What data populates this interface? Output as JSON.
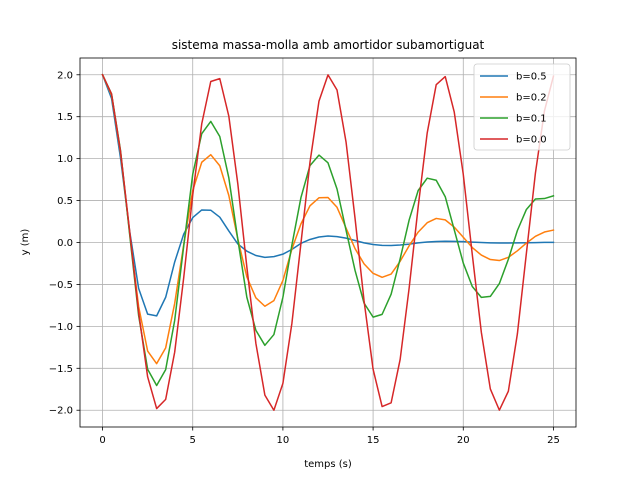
{
  "chart_data": {
    "type": "line",
    "title": "sistema massa-molla amb amortidor subamortiguat",
    "xlabel": "temps (s)",
    "ylabel": "y (m)",
    "xlim": [
      -1.25,
      26.25
    ],
    "ylim": [
      -2.2,
      2.2
    ],
    "xticks": [
      0,
      5,
      10,
      15,
      20,
      25
    ],
    "yticks": [
      -2.0,
      -1.5,
      -1.0,
      -0.5,
      0.0,
      0.5,
      1.0,
      1.5,
      2.0
    ],
    "xtick_labels": [
      "0",
      "5",
      "10",
      "15",
      "20",
      "25"
    ],
    "ytick_labels": [
      "−2.0",
      "−1.5",
      "−1.0",
      "−0.5",
      "0.0",
      "0.5",
      "1.0",
      "1.5",
      "2.0"
    ],
    "grid": true,
    "legend_position": "top-right",
    "x": [
      0,
      0.5,
      1,
      1.5,
      2,
      2.5,
      3,
      3.5,
      4,
      4.5,
      5,
      5.5,
      6,
      6.5,
      7,
      7.5,
      8,
      8.5,
      9,
      9.5,
      10,
      10.5,
      11,
      11.5,
      12,
      12.5,
      13,
      13.5,
      14,
      14.5,
      15,
      15.5,
      16,
      16.5,
      17,
      17.5,
      18,
      18.5,
      19,
      19.5,
      20,
      20.5,
      21,
      21.5,
      22,
      22.5,
      23,
      23.5,
      24,
      24.5,
      25
    ],
    "series": [
      {
        "name": "b=0.5",
        "color": "#1f77b4",
        "values": [
          2.0,
          1.717,
          1.001,
          0.141,
          -0.547,
          -0.854,
          -0.875,
          -0.653,
          -0.232,
          0.1,
          0.297,
          0.388,
          0.385,
          0.302,
          0.138,
          -0.017,
          -0.103,
          -0.155,
          -0.177,
          -0.168,
          -0.139,
          -0.082,
          -0.01,
          0.036,
          0.066,
          0.078,
          0.07,
          0.052,
          0.024,
          -0.004,
          -0.024,
          -0.034,
          -0.035,
          -0.03,
          -0.019,
          -0.005,
          0.006,
          0.012,
          0.015,
          0.014,
          0.011,
          0.005,
          0.0,
          -0.004,
          -0.006,
          -0.006,
          -0.005,
          -0.003,
          -0.001,
          0.001,
          0.002
        ]
      },
      {
        "name": "b=0.2",
        "color": "#ff7f0e",
        "values": [
          2.0,
          1.757,
          1.067,
          0.119,
          -0.763,
          -1.294,
          -1.445,
          -1.256,
          -0.726,
          -0.027,
          0.62,
          0.957,
          1.047,
          0.915,
          0.562,
          0.042,
          -0.41,
          -0.66,
          -0.76,
          -0.693,
          -0.452,
          -0.078,
          0.222,
          0.437,
          0.533,
          0.537,
          0.42,
          0.173,
          -0.073,
          -0.255,
          -0.368,
          -0.415,
          -0.376,
          -0.224,
          -0.038,
          0.124,
          0.236,
          0.287,
          0.27,
          0.183,
          0.062,
          -0.06,
          -0.15,
          -0.203,
          -0.215,
          -0.177,
          -0.099,
          -0.007,
          0.074,
          0.125,
          0.148
        ]
      },
      {
        "name": "b=0.1",
        "color": "#2ca02c",
        "values": [
          2.0,
          1.772,
          1.092,
          0.103,
          -0.871,
          -1.511,
          -1.705,
          -1.516,
          -0.928,
          -0.043,
          0.814,
          1.298,
          1.444,
          1.264,
          0.773,
          0.036,
          -0.653,
          -1.046,
          -1.226,
          -1.098,
          -0.653,
          -0.029,
          0.536,
          0.917,
          1.042,
          0.95,
          0.638,
          0.147,
          -0.333,
          -0.723,
          -0.89,
          -0.857,
          -0.617,
          -0.195,
          0.269,
          0.62,
          0.767,
          0.742,
          0.546,
          0.151,
          -0.245,
          -0.525,
          -0.654,
          -0.643,
          -0.49,
          -0.2,
          0.143,
          0.394,
          0.519,
          0.524,
          0.556
        ]
      },
      {
        "name": "b=0.0",
        "color": "#d62728",
        "values": [
          2.0,
          1.771,
          1.081,
          0.141,
          -0.832,
          -1.602,
          -1.98,
          -1.871,
          -1.307,
          -0.42,
          0.567,
          1.416,
          1.92,
          1.954,
          1.508,
          0.699,
          -0.292,
          -1.201,
          -1.82,
          -2.0,
          -1.679,
          -0.961,
          -0.009,
          0.955,
          1.686,
          1.999,
          1.818,
          1.199,
          0.288,
          -0.697,
          -1.511,
          -1.956,
          -1.911,
          -1.394,
          -0.542,
          0.426,
          1.306,
          1.882,
          1.978,
          1.555,
          0.813,
          -0.144,
          -1.068,
          -1.746,
          -1.999,
          -1.773,
          -1.09,
          -0.127,
          0.828,
          1.569,
          1.983
        ]
      }
    ]
  }
}
